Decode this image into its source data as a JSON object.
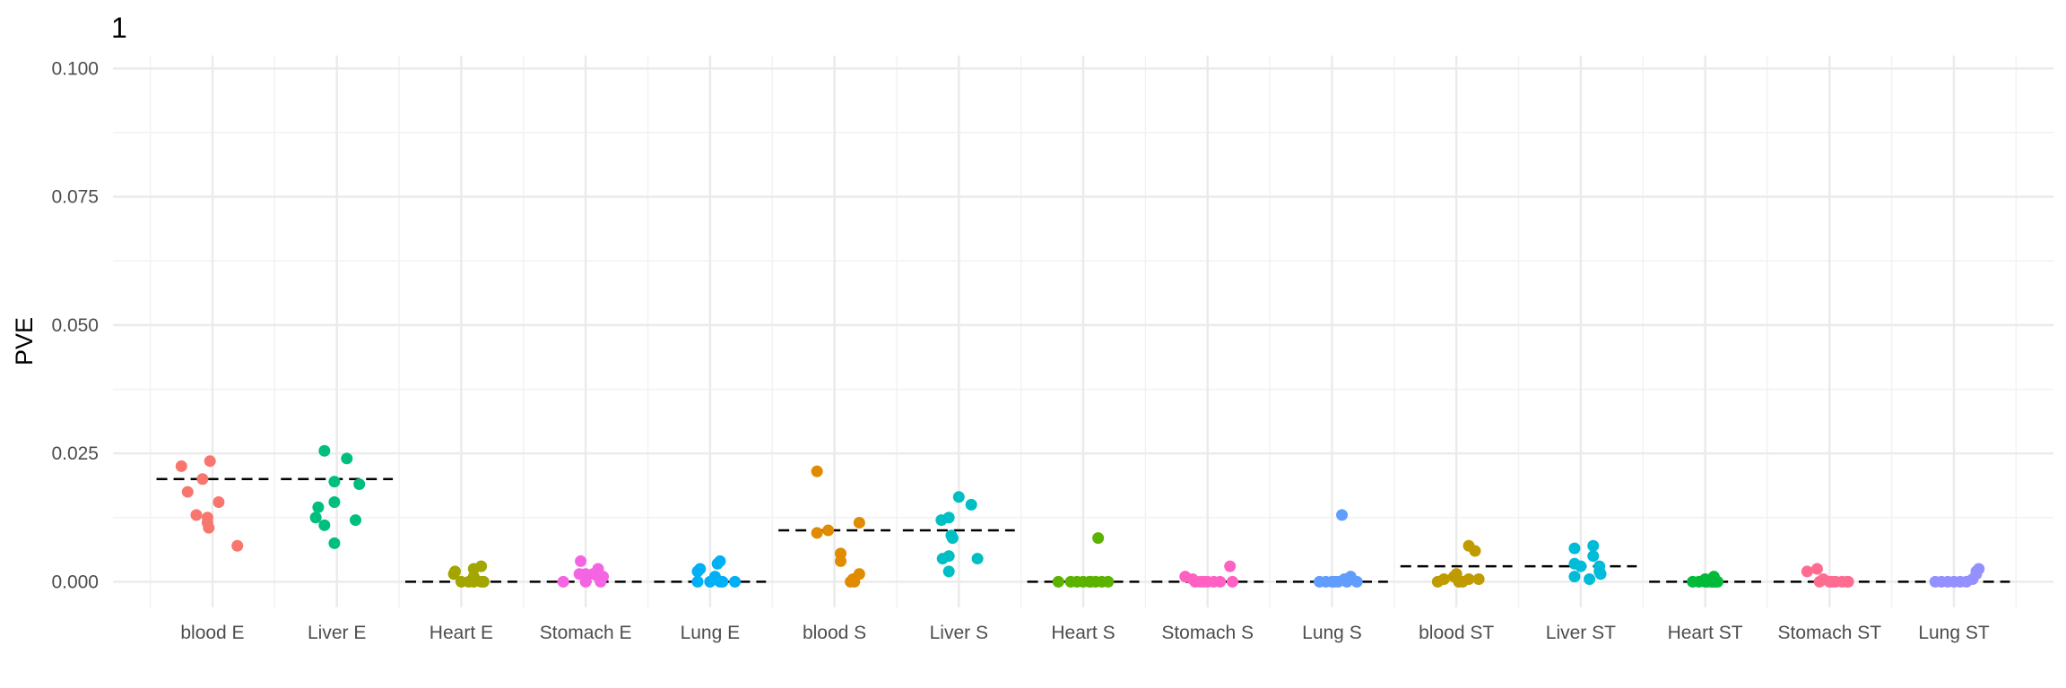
{
  "chart_data": {
    "type": "scatter",
    "title": "1",
    "ylabel": "PVE",
    "xlabel": "",
    "ylim": [
      -0.005,
      0.1025
    ],
    "y_ticks": [
      "0.000",
      "0.025",
      "0.050",
      "0.075",
      "0.100"
    ],
    "y_tick_values": [
      0,
      0.025,
      0.05,
      0.075,
      0.1
    ],
    "grid": true,
    "legend": "none",
    "categories": [
      "blood E",
      "Liver E",
      "Heart E",
      "Stomach E",
      "Lung E",
      "blood S",
      "Liver S",
      "Heart S",
      "Stomach S",
      "Lung S",
      "blood ST",
      "Liver ST",
      "Heart ST",
      "Stomach ST",
      "Lung ST"
    ],
    "colors": [
      "#F8766D",
      "#00BF7D",
      "#A3A500",
      "#F564E3",
      "#00B0F6",
      "#E08B00",
      "#00BFC4",
      "#5BB300",
      "#FF61C3",
      "#619CFF",
      "#C09B00",
      "#00BCD8",
      "#00BA38",
      "#FF6C91",
      "#9590FF"
    ],
    "reference_lines": [
      0.02,
      0.02,
      0.0,
      0.0,
      0.0,
      0.01,
      0.01,
      0.0,
      0.0,
      0.0,
      0.003,
      0.003,
      0.0,
      0.0,
      0.0
    ],
    "points": [
      [
        [
          -0.25,
          0.0225
        ],
        [
          -0.02,
          0.0235
        ],
        [
          -0.2,
          0.0175
        ],
        [
          -0.08,
          0.02
        ],
        [
          -0.13,
          0.013
        ],
        [
          0.05,
          0.0155
        ],
        [
          -0.04,
          0.0125
        ],
        [
          -0.04,
          0.0115
        ],
        [
          -0.03,
          0.0105
        ],
        [
          0.2,
          0.007
        ]
      ],
      [
        [
          -0.1,
          0.0255
        ],
        [
          0.08,
          0.024
        ],
        [
          -0.02,
          0.0195
        ],
        [
          0.18,
          0.019
        ],
        [
          -0.15,
          0.0145
        ],
        [
          -0.02,
          0.0155
        ],
        [
          -0.17,
          0.0125
        ],
        [
          0.15,
          0.012
        ],
        [
          -0.1,
          0.011
        ],
        [
          -0.02,
          0.0075
        ]
      ],
      [
        [
          -0.06,
          0.0015
        ],
        [
          -0.05,
          0.002
        ],
        [
          0.1,
          0.0025
        ],
        [
          0.16,
          0.003
        ],
        [
          0.1,
          0.001
        ],
        [
          0.0,
          0.0
        ],
        [
          0.06,
          0.0
        ],
        [
          0.1,
          0.0
        ],
        [
          0.16,
          0.0
        ],
        [
          0.18,
          0.0
        ]
      ],
      [
        [
          -0.04,
          0.004
        ],
        [
          0.1,
          0.0025
        ],
        [
          -0.05,
          0.0015
        ],
        [
          0.0,
          0.0015
        ],
        [
          0.06,
          0.0015
        ],
        [
          0.1,
          0.001
        ],
        [
          0.14,
          0.001
        ],
        [
          -0.18,
          0.0
        ],
        [
          0.0,
          0.0
        ],
        [
          0.12,
          0.0
        ]
      ],
      [
        [
          0.06,
          0.0035
        ],
        [
          0.08,
          0.004
        ],
        [
          -0.1,
          0.002
        ],
        [
          -0.08,
          0.0025
        ],
        [
          0.04,
          0.001
        ],
        [
          -0.1,
          0.0
        ],
        [
          0.0,
          0.0
        ],
        [
          0.08,
          0.0
        ],
        [
          0.1,
          0.0
        ],
        [
          0.2,
          0.0
        ]
      ],
      [
        [
          -0.14,
          0.0215
        ],
        [
          -0.05,
          0.01
        ],
        [
          -0.14,
          0.0095
        ],
        [
          0.2,
          0.0115
        ],
        [
          0.05,
          0.0055
        ],
        [
          0.05,
          0.004
        ],
        [
          0.2,
          0.0015
        ],
        [
          0.15,
          0.0005
        ],
        [
          0.16,
          0.0
        ],
        [
          0.13,
          0.0
        ]
      ],
      [
        [
          -0.08,
          0.0125
        ],
        [
          0.0,
          0.0165
        ],
        [
          0.1,
          0.015
        ],
        [
          -0.14,
          0.012
        ],
        [
          -0.06,
          0.009
        ],
        [
          -0.05,
          0.0085
        ],
        [
          0.15,
          0.0045
        ],
        [
          -0.13,
          0.0045
        ],
        [
          -0.08,
          0.005
        ],
        [
          -0.08,
          0.002
        ]
      ],
      [
        [
          0.12,
          0.0085
        ],
        [
          -0.2,
          0.0
        ],
        [
          -0.05,
          0.0
        ],
        [
          0.0,
          0.0
        ],
        [
          0.05,
          0.0
        ],
        [
          0.1,
          0.0
        ],
        [
          0.2,
          0.0
        ],
        [
          0.06,
          0.0
        ],
        [
          -0.1,
          0.0
        ],
        [
          0.15,
          0.0
        ]
      ],
      [
        [
          0.18,
          0.003
        ],
        [
          -0.18,
          0.001
        ],
        [
          -0.12,
          0.0005
        ],
        [
          -0.1,
          0.0
        ],
        [
          -0.03,
          0.0
        ],
        [
          0.0,
          0.0
        ],
        [
          0.05,
          0.0
        ],
        [
          0.1,
          0.0
        ],
        [
          0.2,
          0.0
        ],
        [
          -0.06,
          0.0
        ]
      ],
      [
        [
          0.08,
          0.013
        ],
        [
          0.15,
          0.001
        ],
        [
          0.1,
          0.0005
        ],
        [
          0.0,
          0.0
        ],
        [
          -0.1,
          0.0
        ],
        [
          0.05,
          0.0
        ],
        [
          0.12,
          0.0
        ],
        [
          -0.05,
          0.0
        ],
        [
          0.2,
          0.0
        ],
        [
          0.02,
          0.0
        ]
      ],
      [
        [
          0.1,
          0.007
        ],
        [
          0.15,
          0.006
        ],
        [
          0.0,
          0.0015
        ],
        [
          -0.15,
          0.0
        ],
        [
          -0.02,
          0.001
        ],
        [
          -0.1,
          0.0005
        ],
        [
          0.05,
          0.0
        ],
        [
          0.18,
          0.0005
        ],
        [
          0.1,
          0.0005
        ],
        [
          0.02,
          0.0
        ]
      ],
      [
        [
          -0.05,
          0.0065
        ],
        [
          0.1,
          0.007
        ],
        [
          0.1,
          0.005
        ],
        [
          -0.05,
          0.0035
        ],
        [
          0.0,
          0.003
        ],
        [
          0.15,
          0.003
        ],
        [
          0.15,
          0.002
        ],
        [
          0.16,
          0.0015
        ],
        [
          -0.05,
          0.001
        ],
        [
          0.07,
          0.0005
        ]
      ],
      [
        [
          -0.1,
          0.0
        ],
        [
          0.0,
          0.0005
        ],
        [
          0.07,
          0.001
        ],
        [
          0.1,
          0.0
        ],
        [
          0.05,
          0.0
        ],
        [
          0.02,
          0.0
        ],
        [
          -0.05,
          0.0
        ],
        [
          0.0,
          0.0
        ],
        [
          0.08,
          0.0
        ],
        [
          0.06,
          0.0
        ]
      ],
      [
        [
          -0.18,
          0.002
        ],
        [
          -0.1,
          0.0025
        ],
        [
          -0.05,
          0.0005
        ],
        [
          0.0,
          0.0
        ],
        [
          0.05,
          0.0
        ],
        [
          0.15,
          0.0
        ],
        [
          -0.08,
          0.0
        ],
        [
          0.1,
          0.0
        ],
        [
          0.14,
          0.0
        ],
        [
          0.02,
          0.0
        ]
      ],
      [
        [
          0.2,
          0.0025
        ],
        [
          0.18,
          0.0015
        ],
        [
          0.15,
          0.0005
        ],
        [
          -0.15,
          0.0
        ],
        [
          -0.05,
          0.0
        ],
        [
          0.0,
          0.0
        ],
        [
          0.05,
          0.0
        ],
        [
          0.1,
          0.0
        ],
        [
          -0.1,
          0.0
        ],
        [
          0.18,
          0.002
        ]
      ]
    ]
  }
}
